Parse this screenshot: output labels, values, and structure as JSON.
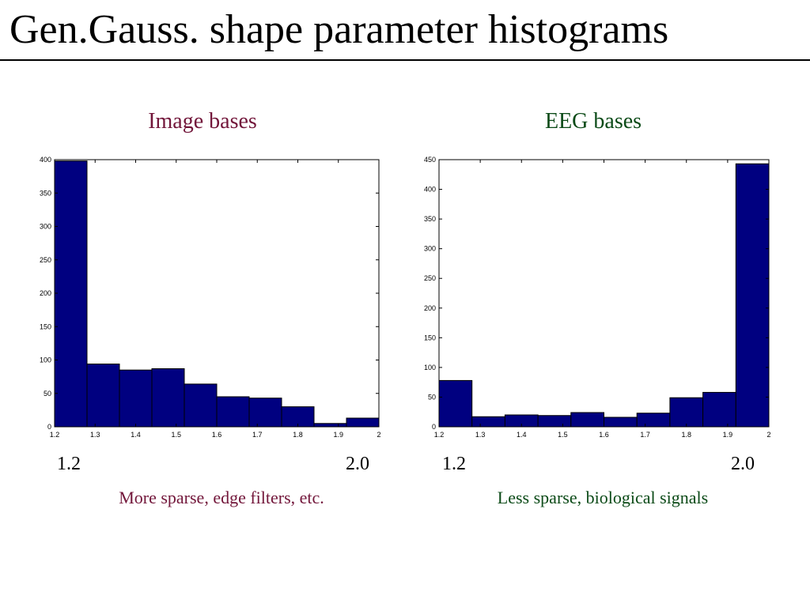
{
  "slide": {
    "title": "Gen.Gauss. shape parameter histograms"
  },
  "colors": {
    "bar_fill": "#000080",
    "image_color": "#72163a",
    "eeg_color": "#0b4a17"
  },
  "left": {
    "chart_title": "Image bases",
    "range_start": "1.2",
    "range_end": "2.0",
    "caption": "More sparse, edge filters, etc."
  },
  "right": {
    "chart_title": "EEG bases",
    "range_start": "1.2",
    "range_end": "2.0",
    "caption": "Less sparse, biological signals"
  },
  "chart_data": [
    {
      "type": "bar",
      "title": "Image bases",
      "bin_edges": [
        1.2,
        1.28,
        1.36,
        1.44,
        1.52,
        1.6,
        1.68,
        1.76,
        1.84,
        1.92,
        2.0
      ],
      "values": [
        398,
        94,
        85,
        87,
        64,
        45,
        43,
        30,
        5,
        13
      ],
      "xlim": [
        1.2,
        2.0
      ],
      "ylim": [
        0,
        400
      ],
      "xticks": [
        1.2,
        1.3,
        1.4,
        1.5,
        1.6,
        1.7,
        1.8,
        1.9,
        2.0
      ],
      "xtick_labels": [
        "1.2",
        "1.3",
        "1.4",
        "1.5",
        "1.6",
        "1.7",
        "1.8",
        "1.9",
        "2"
      ],
      "yticks": [
        0,
        50,
        100,
        150,
        200,
        250,
        300,
        350,
        400
      ],
      "ytick_labels": [
        "0",
        "50",
        "100",
        "150",
        "200",
        "250",
        "300",
        "350",
        "400"
      ],
      "xlabel": "",
      "ylabel": "",
      "grid": false
    },
    {
      "type": "bar",
      "title": "EEG bases",
      "bin_edges": [
        1.2,
        1.28,
        1.36,
        1.44,
        1.52,
        1.6,
        1.68,
        1.76,
        1.84,
        1.92,
        2.0
      ],
      "values": [
        78,
        17,
        20,
        19,
        24,
        16,
        23,
        49,
        58,
        443
      ],
      "xlim": [
        1.2,
        2.0
      ],
      "ylim": [
        0,
        450
      ],
      "xticks": [
        1.2,
        1.3,
        1.4,
        1.5,
        1.6,
        1.7,
        1.8,
        1.9,
        2.0
      ],
      "xtick_labels": [
        "1.2",
        "1.3",
        "1.4",
        "1.5",
        "1.6",
        "1.7",
        "1.8",
        "1.9",
        "2"
      ],
      "yticks": [
        0,
        50,
        100,
        150,
        200,
        250,
        300,
        350,
        400,
        450
      ],
      "ytick_labels": [
        "0",
        "50",
        "100",
        "150",
        "200",
        "250",
        "300",
        "350",
        "400",
        "450"
      ],
      "xlabel": "",
      "ylabel": "",
      "grid": false
    }
  ]
}
